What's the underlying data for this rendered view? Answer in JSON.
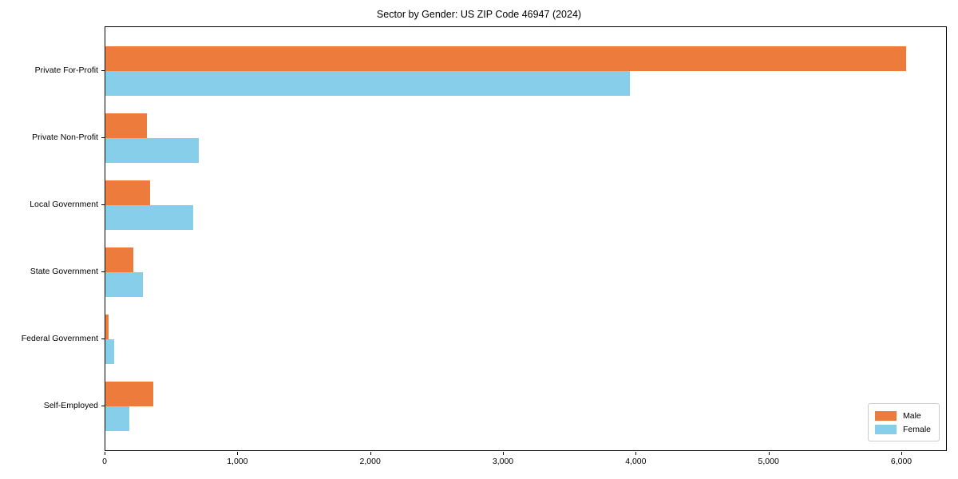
{
  "chart_data": {
    "type": "bar",
    "orientation": "horizontal",
    "title": "Sector by Gender: US ZIP Code 46947 (2024)",
    "categories": [
      "Private For-Profit",
      "Private Non-Profit",
      "Local Government",
      "State Government",
      "Federal Government",
      "Self-Employed"
    ],
    "series": [
      {
        "name": "Male",
        "color": "#ED7B3C",
        "values": [
          6030,
          315,
          335,
          210,
          25,
          360
        ]
      },
      {
        "name": "Female",
        "color": "#86CEEA",
        "values": [
          3950,
          705,
          660,
          285,
          65,
          180
        ]
      }
    ],
    "x_ticks": [
      0,
      1000,
      2000,
      3000,
      4000,
      5000,
      6000
    ],
    "x_tick_labels": [
      "0",
      "1,000",
      "2,000",
      "3,000",
      "4,000",
      "5,000",
      "6,000"
    ],
    "xlim": [
      0,
      6343
    ],
    "xlabel": "",
    "ylabel": "",
    "grid": false,
    "legend_position": "lower right"
  }
}
